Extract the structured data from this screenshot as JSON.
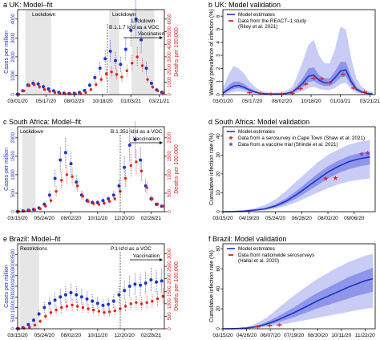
{
  "colors": {
    "blue": "#1f33c8",
    "red": "#e0231f",
    "band_light": "#c9cdf6",
    "band_dark": "#8f96ea",
    "shade": "#e6e6e6"
  },
  "chart_data": [
    {
      "id": "a",
      "type": "scatter",
      "title": "a  UK: Model–fit",
      "x_ticks": [
        "03/01/20",
        "05/17/20",
        "08/02/20",
        "10/18/20",
        "01/03/21",
        "03/21/21"
      ],
      "ylabel": "Cases per million",
      "ylabel_right": "Deaths per 100,000",
      "y_ticks": [
        "0",
        "1000",
        "2000",
        "3000",
        "4000"
      ],
      "y2_ticks": [
        "0",
        "1000",
        "2000",
        "3000",
        "4000",
        "5000",
        "6000"
      ],
      "ylim": [
        0,
        4500
      ],
      "y2lim": [
        0,
        6750
      ],
      "x": [
        "03/01/20",
        "03/15/20",
        "03/29/20",
        "04/12/20",
        "04/26/20",
        "05/10/20",
        "05/24/20",
        "06/07/20",
        "06/21/20",
        "07/05/20",
        "07/19/20",
        "08/02/20",
        "08/16/20",
        "08/30/20",
        "09/13/20",
        "09/27/20",
        "10/11/20",
        "10/25/20",
        "11/08/20",
        "11/22/20",
        "12/06/20",
        "12/20/20",
        "01/03/21",
        "01/17/21",
        "01/31/21",
        "02/14/21",
        "02/28/21",
        "03/14/21",
        "03/28/21"
      ],
      "series": [
        {
          "values": [
            20,
            200,
            500,
            600,
            560,
            420,
            300,
            200,
            120,
            80,
            60,
            70,
            110,
            220,
            500,
            900,
            1400,
            1900,
            2300,
            1800,
            1600,
            2400,
            3400,
            4000,
            2900,
            1400,
            600,
            250,
            120
          ]
        },
        {
          "values": [
            20,
            300,
            720,
            800,
            620,
            400,
            260,
            160,
            100,
            70,
            60,
            60,
            80,
            160,
            400,
            800,
            1200,
            1650,
            1800,
            1600,
            1400,
            1900,
            2500,
            3000,
            2300,
            1200,
            600,
            300,
            150
          ]
        }
      ],
      "annotations": [
        "Lockdown",
        "Lockdown",
        "Lockdown",
        "B.1.1.7 Id'd as a VOC",
        "Vaccination"
      ],
      "shaded_periods": [
        [
          "03/22/20",
          "05/31/20"
        ],
        [
          "11/05/20",
          "12/02/20"
        ],
        [
          "01/05/21",
          "03/08/21"
        ]
      ]
    },
    {
      "id": "b",
      "type": "line",
      "title": "b  UK: Model validation",
      "x_ticks": [
        "03/01/20",
        "05/17/20",
        "08/02/20",
        "10/18/20",
        "01/03/21",
        "03/21/21"
      ],
      "ylabel": "Weekly prevalence of infection (%)",
      "y_ticks": [
        "0",
        "1",
        "2",
        "3",
        "4",
        "5",
        "6"
      ],
      "ylim": [
        0,
        6.5
      ],
      "x": [
        "03/01/20",
        "03/15/20",
        "03/29/20",
        "04/12/20",
        "04/26/20",
        "05/10/20",
        "05/24/20",
        "06/07/20",
        "06/21/20",
        "07/05/20",
        "07/19/20",
        "08/02/20",
        "08/16/20",
        "08/30/20",
        "09/13/20",
        "09/27/20",
        "10/11/20",
        "10/25/20",
        "11/08/20",
        "11/22/20",
        "12/06/20",
        "12/20/20",
        "01/03/21",
        "01/17/21",
        "01/31/21",
        "02/14/21",
        "02/28/21",
        "03/14/21",
        "03/28/21"
      ],
      "series": [
        {
          "name": "Model estimates",
          "values": [
            0.1,
            0.4,
            0.65,
            0.7,
            0.55,
            0.35,
            0.2,
            0.1,
            0.07,
            0.05,
            0.05,
            0.06,
            0.1,
            0.2,
            0.5,
            0.9,
            1.4,
            1.5,
            1.1,
            0.9,
            0.9,
            1.3,
            1.8,
            1.9,
            1.0,
            0.4,
            0.2,
            0.1,
            0.05
          ],
          "low95": [
            0.02,
            0.1,
            0.2,
            0.25,
            0.2,
            0.1,
            0.05,
            0.03,
            0.02,
            0.02,
            0.02,
            0.02,
            0.03,
            0.06,
            0.15,
            0.3,
            0.5,
            0.6,
            0.45,
            0.35,
            0.35,
            0.5,
            0.8,
            0.9,
            0.45,
            0.15,
            0.06,
            0.03,
            0.02
          ],
          "high95": [
            0.5,
            1.5,
            2.2,
            2.0,
            1.6,
            1.0,
            0.6,
            0.3,
            0.2,
            0.15,
            0.15,
            0.2,
            0.3,
            0.6,
            1.5,
            2.6,
            3.8,
            4.2,
            3.0,
            2.4,
            2.4,
            3.5,
            5.2,
            5.0,
            2.8,
            1.2,
            0.6,
            0.3,
            0.2
          ],
          "low50": [
            0.05,
            0.25,
            0.45,
            0.5,
            0.4,
            0.25,
            0.13,
            0.07,
            0.05,
            0.04,
            0.04,
            0.04,
            0.07,
            0.13,
            0.33,
            0.6,
            0.95,
            1.05,
            0.8,
            0.65,
            0.65,
            0.9,
            1.3,
            1.4,
            0.7,
            0.28,
            0.13,
            0.07,
            0.04
          ],
          "high50": [
            0.2,
            0.7,
            1.0,
            1.0,
            0.8,
            0.5,
            0.3,
            0.15,
            0.1,
            0.07,
            0.07,
            0.09,
            0.15,
            0.3,
            0.75,
            1.3,
            2.0,
            2.1,
            1.5,
            1.25,
            1.25,
            1.8,
            2.5,
            2.5,
            1.4,
            0.6,
            0.3,
            0.15,
            0.08
          ]
        },
        {
          "name": "Data from the REACT–1 study (Riley et al. 2021)",
          "x": [
            "05/10/20",
            "06/07/20",
            "07/05/20",
            "08/02/20",
            "08/30/20",
            "09/20/20",
            "10/04/20",
            "10/25/20",
            "11/15/20",
            "12/06/20",
            "01/10/21",
            "02/07/21",
            "03/07/21"
          ],
          "values": [
            0.15,
            0.1,
            0.06,
            0.05,
            0.1,
            0.45,
            0.8,
            1.25,
            1.2,
            0.9,
            1.55,
            0.5,
            0.2
          ]
        }
      ]
    },
    {
      "id": "c",
      "type": "scatter",
      "title": "c  South Africa: Model–fit",
      "x_ticks": [
        "03/15/20",
        "05/24/20",
        "08/02/20",
        "10/11/20",
        "12/20/20",
        "02/28/21"
      ],
      "ylabel": "Cases per million",
      "ylabel_right": "Deaths per 100,000",
      "y_ticks": [
        "0",
        "500",
        "1000",
        "1500",
        "2000"
      ],
      "y2_ticks": [
        "0",
        "500",
        "1000",
        "1500",
        "2000"
      ],
      "ylim": [
        0,
        2300
      ],
      "y2lim": [
        0,
        2300
      ],
      "x": [
        "03/15/20",
        "03/29/20",
        "04/12/20",
        "04/26/20",
        "05/10/20",
        "05/24/20",
        "06/07/20",
        "06/21/20",
        "07/05/20",
        "07/19/20",
        "08/02/20",
        "08/16/20",
        "08/30/20",
        "09/13/20",
        "09/27/20",
        "10/11/20",
        "10/25/20",
        "11/08/20",
        "11/22/20",
        "12/06/20",
        "12/20/20",
        "01/03/21",
        "01/17/21",
        "01/31/21",
        "02/14/21",
        "02/28/21",
        "03/14/21",
        "03/28/21"
      ],
      "series": [
        {
          "values": [
            5,
            20,
            40,
            60,
            100,
            200,
            450,
            900,
            1400,
            1600,
            1300,
            800,
            450,
            300,
            250,
            250,
            300,
            350,
            450,
            700,
            1200,
            1800,
            1950,
            1400,
            700,
            350,
            200,
            150
          ]
        },
        {
          "values": [
            5,
            15,
            30,
            50,
            80,
            150,
            300,
            550,
            850,
            1000,
            950,
            700,
            420,
            280,
            220,
            200,
            230,
            280,
            350,
            550,
            900,
            1250,
            1350,
            1100,
            650,
            350,
            200,
            150
          ]
        }
      ],
      "annotations": [
        "Lockdown",
        "B.1.351 Id'd as a VOC",
        "Vaccination"
      ],
      "shaded_periods": [
        [
          "03/27/20",
          "05/01/20"
        ]
      ]
    },
    {
      "id": "d",
      "type": "line",
      "title": "d  South Africa: Model validation",
      "x_ticks": [
        "03/15/20",
        "04/19/20",
        "05/24/20",
        "06/28/20",
        "08/02/20",
        "09/06/20"
      ],
      "ylabel": "Cumulative infection rate (%)",
      "y_ticks": [
        "0",
        "10",
        "20",
        "30",
        "40"
      ],
      "ylim": [
        0,
        45
      ],
      "x": [
        "03/15/20",
        "03/29/20",
        "04/12/20",
        "04/26/20",
        "05/10/20",
        "05/24/20",
        "06/07/20",
        "06/21/20",
        "07/05/20",
        "07/19/20",
        "08/02/20",
        "08/16/20",
        "08/30/20",
        "09/13/20",
        "09/27/20"
      ],
      "series": [
        {
          "name": "Model estimates",
          "values": [
            0,
            0.1,
            0.3,
            0.8,
            1.5,
            3,
            5.5,
            9,
            13,
            17,
            21,
            24,
            26.5,
            28,
            29
          ],
          "low95": [
            0,
            0,
            0.1,
            0.3,
            0.7,
            1.5,
            3,
            5,
            7.5,
            10,
            12.5,
            14.5,
            16,
            17,
            17.5
          ],
          "high95": [
            0,
            0.3,
            0.8,
            1.8,
            3.5,
            6.5,
            11,
            16,
            21,
            26,
            30,
            33,
            35.5,
            37,
            38
          ],
          "low50": [
            0,
            0.05,
            0.2,
            0.6,
            1.1,
            2.3,
            4.3,
            7,
            10.5,
            14,
            17.5,
            20.5,
            22.5,
            24,
            25
          ],
          "high50": [
            0,
            0.15,
            0.4,
            1.1,
            2,
            4,
            7,
            11,
            15.5,
            20,
            24,
            27,
            29.5,
            31,
            32
          ]
        },
        {
          "name": "Data from a serosurvey in Cape Town (Shaw et al. 2021)",
          "x": [
            "07/30/20",
            "08/12/20"
          ],
          "values": [
            17.5,
            17.8
          ]
        },
        {
          "name": "Data from a vaccine trial (Shinde et al. 2021)",
          "x": [
            "09/16/20",
            "09/24/20"
          ],
          "values": [
            30.5,
            31
          ]
        }
      ]
    },
    {
      "id": "e",
      "type": "scatter",
      "title": "e  Brazil: Model–fit",
      "x_ticks": [
        "03/15/20",
        "05/24/20",
        "08/02/20",
        "10/11/20",
        "12/20/20",
        "02/28/21"
      ],
      "ylabel": "Cases per million",
      "ylabel_right": "Deaths per 100,000",
      "y_ticks": [
        "0",
        "500",
        "1000",
        "1500",
        "2000",
        "2500",
        "3000",
        "3500"
      ],
      "y2_ticks": [
        "0",
        "500",
        "1000",
        "1500",
        "2000",
        "2500",
        "3000"
      ],
      "ylim": [
        0,
        4000
      ],
      "y2lim": [
        0,
        3400
      ],
      "x": [
        "03/15/20",
        "03/29/20",
        "04/12/20",
        "04/26/20",
        "05/10/20",
        "05/24/20",
        "06/07/20",
        "06/21/20",
        "07/05/20",
        "07/19/20",
        "08/02/20",
        "08/16/20",
        "08/30/20",
        "09/13/20",
        "09/27/20",
        "10/11/20",
        "10/25/20",
        "11/08/20",
        "11/22/20",
        "12/06/20",
        "12/20/20",
        "01/03/21",
        "01/17/21",
        "01/31/21",
        "02/14/21",
        "02/28/21",
        "03/14/21",
        "03/28/21"
      ],
      "series": [
        {
          "values": [
            10,
            50,
            200,
            400,
            700,
            1000,
            1200,
            1350,
            1500,
            1600,
            1700,
            1600,
            1500,
            1400,
            1300,
            1200,
            1100,
            1150,
            1300,
            1600,
            1800,
            2000,
            2100,
            2050,
            2150,
            2300,
            2200,
            2250
          ]
        },
        {
          "values": [
            5,
            20,
            60,
            150,
            300,
            500,
            650,
            750,
            850,
            900,
            950,
            900,
            850,
            800,
            750,
            700,
            650,
            680,
            720,
            800,
            900,
            1000,
            1050,
            1000,
            1050,
            1100,
            1200,
            1300
          ]
        }
      ],
      "annotations": [
        "Restrictions",
        "P.1 Id'd as a VOC",
        "Vaccination"
      ],
      "shaded_periods": [
        [
          "03/20/20",
          "05/10/20"
        ]
      ]
    },
    {
      "id": "f",
      "type": "line",
      "title": "f  Brazil: Model validation",
      "x_ticks": [
        "03/15/20",
        "04/26/20",
        "06/07/20",
        "07/19/20",
        "08/30/20",
        "10/11/20",
        "11/22/20"
      ],
      "ylabel": "Cumulative infection rate (%)",
      "y_ticks": [
        "0",
        "20",
        "40",
        "60",
        "80"
      ],
      "ylim": [
        0,
        85
      ],
      "x": [
        "03/15/20",
        "03/29/20",
        "04/12/20",
        "04/26/20",
        "05/10/20",
        "05/24/20",
        "06/07/20",
        "06/21/20",
        "07/05/20",
        "07/19/20",
        "08/02/20",
        "08/16/20",
        "08/30/20",
        "09/13/20",
        "09/27/20",
        "10/11/20",
        "10/25/20",
        "11/08/20",
        "11/22/20",
        "12/06/20"
      ],
      "series": [
        {
          "name": "Model estimates",
          "values": [
            0,
            0.1,
            0.3,
            0.8,
            1.8,
            3.5,
            6,
            9,
            12.5,
            16,
            20,
            24,
            28,
            31.5,
            35,
            38.5,
            42,
            45,
            48,
            50
          ],
          "low95": [
            0,
            0,
            0.1,
            0.3,
            0.7,
            1.4,
            2.4,
            3.6,
            5,
            6.5,
            8,
            9.5,
            11,
            12.5,
            14,
            15.5,
            17,
            18.5,
            20,
            21
          ],
          "high95": [
            0,
            0.3,
            0.8,
            2,
            4.5,
            8.5,
            14,
            20.5,
            27,
            33,
            39,
            44.5,
            50,
            54.5,
            59,
            63,
            67,
            70,
            73,
            75
          ],
          "low50": [
            0,
            0.06,
            0.2,
            0.55,
            1.3,
            2.5,
            4.3,
            6.5,
            9,
            11.5,
            14.5,
            17.5,
            20.5,
            23,
            25.5,
            28,
            30.5,
            33,
            35,
            37
          ],
          "high50": [
            0,
            0.15,
            0.45,
            1.2,
            2.6,
            5,
            8.5,
            12.5,
            17,
            21.5,
            26.5,
            31.5,
            36,
            40,
            44,
            48,
            52,
            55,
            58,
            61
          ]
        },
        {
          "name": "Data from nationwide serosurveys (Hallal et al. 2020)",
          "x": [
            "05/16/20",
            "06/06/20",
            "06/23/20"
          ],
          "values": [
            1.9,
            3.1,
            3.8
          ]
        }
      ]
    }
  ]
}
